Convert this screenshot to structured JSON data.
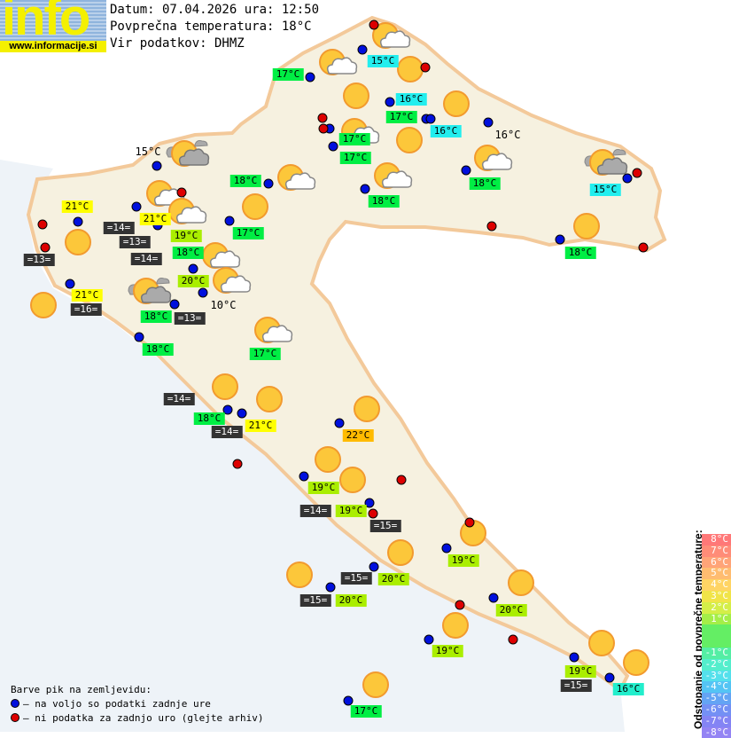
{
  "header": {
    "logo_text": "info",
    "logo_url": "www.informacije.si",
    "date_line": "Datum: 07.04.2026 ura: 12:50",
    "avg_line": "Povprečna temperatura: 18°C",
    "source_line": "Vir podatkov: DHMZ"
  },
  "legend": {
    "title": "Barve pik na zemljevidu:",
    "blue": "– na voljo so podatki zadnje ure",
    "red": "– ni podatka za zadnjo uro (glejte arhiv)",
    "blue_color": "#0010dd",
    "red_color": "#dd0000"
  },
  "scale": {
    "title": "Odstopanje od povprečne temperature:",
    "steps": [
      {
        "label": "8°C",
        "color": "#ff7878"
      },
      {
        "label": "7°C",
        "color": "#ff8c78"
      },
      {
        "label": "6°C",
        "color": "#ffa478"
      },
      {
        "label": "5°C",
        "color": "#ffbc70"
      },
      {
        "label": "4°C",
        "color": "#ffd464"
      },
      {
        "label": "3°C",
        "color": "#f0e448"
      },
      {
        "label": "2°C",
        "color": "#d4ee48"
      },
      {
        "label": "1°C",
        "color": "#a4ee48"
      },
      {
        "label": "",
        "color": "#64ee64"
      },
      {
        "label": "",
        "color": "#64ee64"
      },
      {
        "label": "-1°C",
        "color": "#54eea4"
      },
      {
        "label": "-2°C",
        "color": "#54eecc"
      },
      {
        "label": "-3°C",
        "color": "#54e0ec"
      },
      {
        "label": "-4°C",
        "color": "#54c4f4"
      },
      {
        "label": "-5°C",
        "color": "#64a4f4"
      },
      {
        "label": "-6°C",
        "color": "#7490f4"
      },
      {
        "label": "-7°C",
        "color": "#8484f4"
      },
      {
        "label": "-8°C",
        "color": "#9484f4"
      }
    ]
  },
  "labels": [
    {
      "t": "15°C",
      "c": "cyan"
    },
    {
      "t": "17°C",
      "c": "green"
    },
    {
      "t": "16°C",
      "c": "cyan"
    },
    {
      "t": "17°C",
      "c": "green"
    },
    {
      "t": "16°C",
      "c": "cyan"
    },
    {
      "t": "16°C",
      "c": "plain"
    },
    {
      "t": "17°C",
      "c": "green"
    },
    {
      "t": "17°C",
      "c": "green"
    },
    {
      "t": "18°C",
      "c": "green"
    },
    {
      "t": "18°C",
      "c": "green"
    },
    {
      "t": "15°C",
      "c": "cyan"
    },
    {
      "t": "15°C",
      "c": "plain"
    },
    {
      "t": "18°C",
      "c": "green"
    },
    {
      "t": "21°C",
      "c": "yellow"
    },
    {
      "t": "21°C",
      "c": "yellow"
    },
    {
      "t": "=14=",
      "c": "dark"
    },
    {
      "t": "19°C",
      "c": "yg"
    },
    {
      "t": "=13=",
      "c": "dark"
    },
    {
      "t": "18°C",
      "c": "green"
    },
    {
      "t": "=14=",
      "c": "dark"
    },
    {
      "t": "17°C",
      "c": "green"
    },
    {
      "t": "=13=",
      "c": "dark"
    },
    {
      "t": "20°C",
      "c": "yg"
    },
    {
      "t": "21°C",
      "c": "yellow"
    },
    {
      "t": "=16=",
      "c": "dark"
    },
    {
      "t": "10°C",
      "c": "plain"
    },
    {
      "t": "18°C",
      "c": "green"
    },
    {
      "t": "=13=",
      "c": "dark"
    },
    {
      "t": "18°C",
      "c": "green"
    },
    {
      "t": "17°C",
      "c": "green"
    },
    {
      "t": "=14=",
      "c": "dark"
    },
    {
      "t": "18°C",
      "c": "green"
    },
    {
      "t": "21°C",
      "c": "yellow"
    },
    {
      "t": "=14=",
      "c": "dark"
    },
    {
      "t": "22°C",
      "c": "orange"
    },
    {
      "t": "19°C",
      "c": "yg"
    },
    {
      "t": "=14=",
      "c": "dark"
    },
    {
      "t": "19°C",
      "c": "yg"
    },
    {
      "t": "=15=",
      "c": "dark"
    },
    {
      "t": "19°C",
      "c": "yg"
    },
    {
      "t": "=15=",
      "c": "dark"
    },
    {
      "t": "20°C",
      "c": "yg"
    },
    {
      "t": "=15=",
      "c": "dark"
    },
    {
      "t": "20°C",
      "c": "yg"
    },
    {
      "t": "20°C",
      "c": "yg"
    },
    {
      "t": "19°C",
      "c": "yg"
    },
    {
      "t": "19°C",
      "c": "yg"
    },
    {
      "t": "=15=",
      "c": "dark"
    },
    {
      "t": "16°C",
      "c": "teal"
    },
    {
      "t": "17°C",
      "c": "green"
    },
    {
      "t": "18°C",
      "c": "green"
    }
  ],
  "icons": [
    "sun-cloud-icon",
    "sun-cloud-icon",
    "sun-icon",
    "sun-icon",
    "sun-icon",
    "sun-cloud-icon",
    "sun-icon",
    "sun-cloud-icon",
    "sun-dark-cloud-icon",
    "sun-dark-cloud-icon",
    "sun-cloud-icon",
    "sun-cloud-icon",
    "sun-icon",
    "sun-cloud-icon",
    "sun-cloud-icon",
    "sun-icon",
    "sun-icon",
    "sun-cloud-icon",
    "sun-cloud-icon",
    "sun-dark-cloud-icon",
    "sun-cloud-icon",
    "sun-icon",
    "sun-icon",
    "sun-icon",
    "sun-icon",
    "sun-icon",
    "sun-icon",
    "sun-icon",
    "sun-icon",
    "sun-icon",
    "sun-icon",
    "sun-icon",
    "sun-icon",
    "sun-icon",
    "sun-icon"
  ],
  "dots": [
    "blue",
    "blue",
    "blue",
    "blue",
    "blue",
    "blue",
    "blue",
    "blue",
    "blue",
    "blue",
    "blue",
    "blue",
    "blue",
    "blue",
    "blue",
    "blue",
    "blue",
    "blue",
    "blue",
    "blue",
    "blue",
    "blue",
    "blue",
    "blue",
    "blue",
    "blue",
    "blue",
    "blue",
    "blue",
    "blue",
    "blue",
    "blue",
    "blue",
    "blue",
    "blue",
    "blue",
    "blue",
    "blue",
    "red",
    "red",
    "red",
    "red",
    "red",
    "red",
    "red",
    "red",
    "red",
    "red",
    "red",
    "red",
    "red",
    "red",
    "red",
    "red"
  ]
}
